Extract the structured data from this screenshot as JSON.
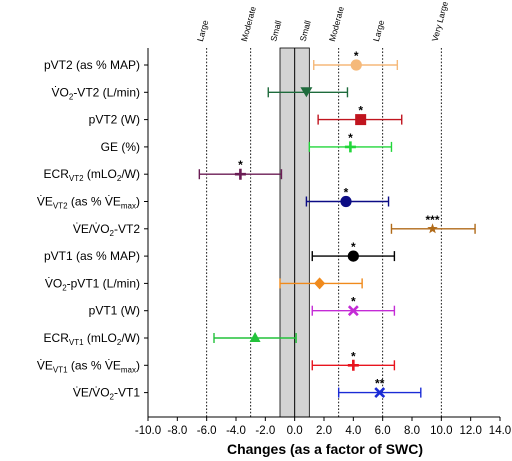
{
  "chart_data": {
    "type": "forest",
    "title": "",
    "xlabel": "Changes (as a factor of SWC)",
    "xlim": [
      -10.0,
      14.0
    ],
    "xticks": [
      "-10.0",
      "-8.0",
      "-6.0",
      "-4.0",
      "-2.0",
      "0.0",
      "2.0",
      "4.0",
      "6.0",
      "8.0",
      "10.0",
      "12.0",
      "14.0"
    ],
    "xtick_values": [
      -10,
      -8,
      -6,
      -4,
      -2,
      0,
      2,
      4,
      6,
      8,
      10,
      12,
      14
    ],
    "swc_band": [
      -1,
      1
    ],
    "thresholds": [
      {
        "x": -6,
        "label": "Large"
      },
      {
        "x": -3,
        "label": "Moderate"
      },
      {
        "x": -1,
        "label": "Small"
      },
      {
        "x": 1,
        "label": "Small"
      },
      {
        "x": 3,
        "label": "Moderate"
      },
      {
        "x": 6,
        "label": "Large"
      },
      {
        "x": 10,
        "label": "Very Large"
      }
    ],
    "rows": [
      {
        "label": "pVT2 (as % MAP)",
        "mean": 4.2,
        "lower": 1.3,
        "upper": 7.0,
        "color": "#f5b97a",
        "marker": "circle",
        "sig": "*"
      },
      {
        "label": "V̇O₂-VT2 (L/min)",
        "mean": 0.8,
        "lower": -1.8,
        "upper": 3.6,
        "color": "#1e6b3c",
        "marker": "triangle-down",
        "sig": ""
      },
      {
        "label": "pVT2 (W)",
        "mean": 4.5,
        "lower": 1.6,
        "upper": 7.3,
        "color": "#c0141e",
        "marker": "square",
        "sig": "*"
      },
      {
        "label": "GE (%)",
        "mean": 3.8,
        "lower": 1.0,
        "upper": 6.6,
        "color": "#22d63a",
        "marker": "plus",
        "sig": "*"
      },
      {
        "label": "ECR_VT2 (mLO₂/W)",
        "mean": -3.7,
        "lower": -6.5,
        "upper": -0.9,
        "color": "#6b1d55",
        "marker": "plus",
        "sig": "*"
      },
      {
        "label": "V̇E_VT2 (as % V̇E_max)",
        "mean": 3.5,
        "lower": 0.8,
        "upper": 6.4,
        "color": "#0c0c85",
        "marker": "circle",
        "sig": "*"
      },
      {
        "label": "V̇E/V̇O₂-VT2",
        "mean": 9.4,
        "lower": 6.6,
        "upper": 12.3,
        "color": "#b06a18",
        "marker": "star",
        "sig": "***"
      },
      {
        "label": "pVT1 (as % MAP)",
        "mean": 4.0,
        "lower": 1.2,
        "upper": 6.8,
        "color": "#000000",
        "marker": "circle",
        "sig": "*"
      },
      {
        "label": "V̇O₂-pVT1 (L/min)",
        "mean": 1.7,
        "lower": -1.0,
        "upper": 4.6,
        "color": "#f08a1c",
        "marker": "diamond",
        "sig": ""
      },
      {
        "label": "pVT1 (W)",
        "mean": 4.0,
        "lower": 1.2,
        "upper": 6.8,
        "color": "#c42bd6",
        "marker": "x",
        "sig": "*"
      },
      {
        "label": "ECR_VT1 (mLO₂/W)",
        "mean": -2.7,
        "lower": -5.5,
        "upper": 0.1,
        "color": "#22c23a",
        "marker": "triangle-up",
        "sig": ""
      },
      {
        "label": "V̇E_VT1 (as % V̇E_max)",
        "mean": 4.0,
        "lower": 1.2,
        "upper": 6.8,
        "color": "#e8141e",
        "marker": "plus",
        "sig": "*"
      },
      {
        "label": "V̇E/V̇O₂-VT1",
        "mean": 5.8,
        "lower": 3.0,
        "upper": 8.6,
        "color": "#1a2bd6",
        "marker": "x",
        "sig": "**"
      }
    ]
  },
  "ylabels": [
    {
      "parts": [
        {
          "t": "pVT2 (as % MAP)"
        }
      ]
    },
    {
      "parts": [
        {
          "t": "V̇O"
        },
        {
          "t": "2",
          "sub": true
        },
        {
          "t": "-VT2 (L/min)"
        }
      ]
    },
    {
      "parts": [
        {
          "t": "pVT2 (W)"
        }
      ]
    },
    {
      "parts": [
        {
          "t": "GE (%)"
        }
      ]
    },
    {
      "parts": [
        {
          "t": "ECR"
        },
        {
          "t": "VT2",
          "sub": true
        },
        {
          "t": " (mLO"
        },
        {
          "t": "2",
          "sub": true
        },
        {
          "t": "/W)"
        }
      ]
    },
    {
      "parts": [
        {
          "t": "V̇E"
        },
        {
          "t": "VT2",
          "sub": true
        },
        {
          "t": " (as % V̇E"
        },
        {
          "t": "max",
          "sub": true
        },
        {
          "t": ")"
        }
      ]
    },
    {
      "parts": [
        {
          "t": "V̇E/V̇O"
        },
        {
          "t": "2",
          "sub": true
        },
        {
          "t": "-VT2"
        }
      ]
    },
    {
      "parts": [
        {
          "t": "pVT1 (as % MAP)"
        }
      ]
    },
    {
      "parts": [
        {
          "t": "V̇O"
        },
        {
          "t": "2",
          "sub": true
        },
        {
          "t": "-pVT1 (L/min)"
        }
      ]
    },
    {
      "parts": [
        {
          "t": "pVT1 (W)"
        }
      ]
    },
    {
      "parts": [
        {
          "t": "ECR"
        },
        {
          "t": "VT1",
          "sub": true
        },
        {
          "t": " (mLO"
        },
        {
          "t": "2",
          "sub": true
        },
        {
          "t": "/W)"
        }
      ]
    },
    {
      "parts": [
        {
          "t": "V̇E"
        },
        {
          "t": "VT1",
          "sub": true
        },
        {
          "t": " (as % V̇E"
        },
        {
          "t": "max",
          "sub": true
        },
        {
          "t": ")"
        }
      ]
    },
    {
      "parts": [
        {
          "t": "V̇E/V̇O"
        },
        {
          "t": "2",
          "sub": true
        },
        {
          "t": "-VT1"
        }
      ]
    }
  ]
}
